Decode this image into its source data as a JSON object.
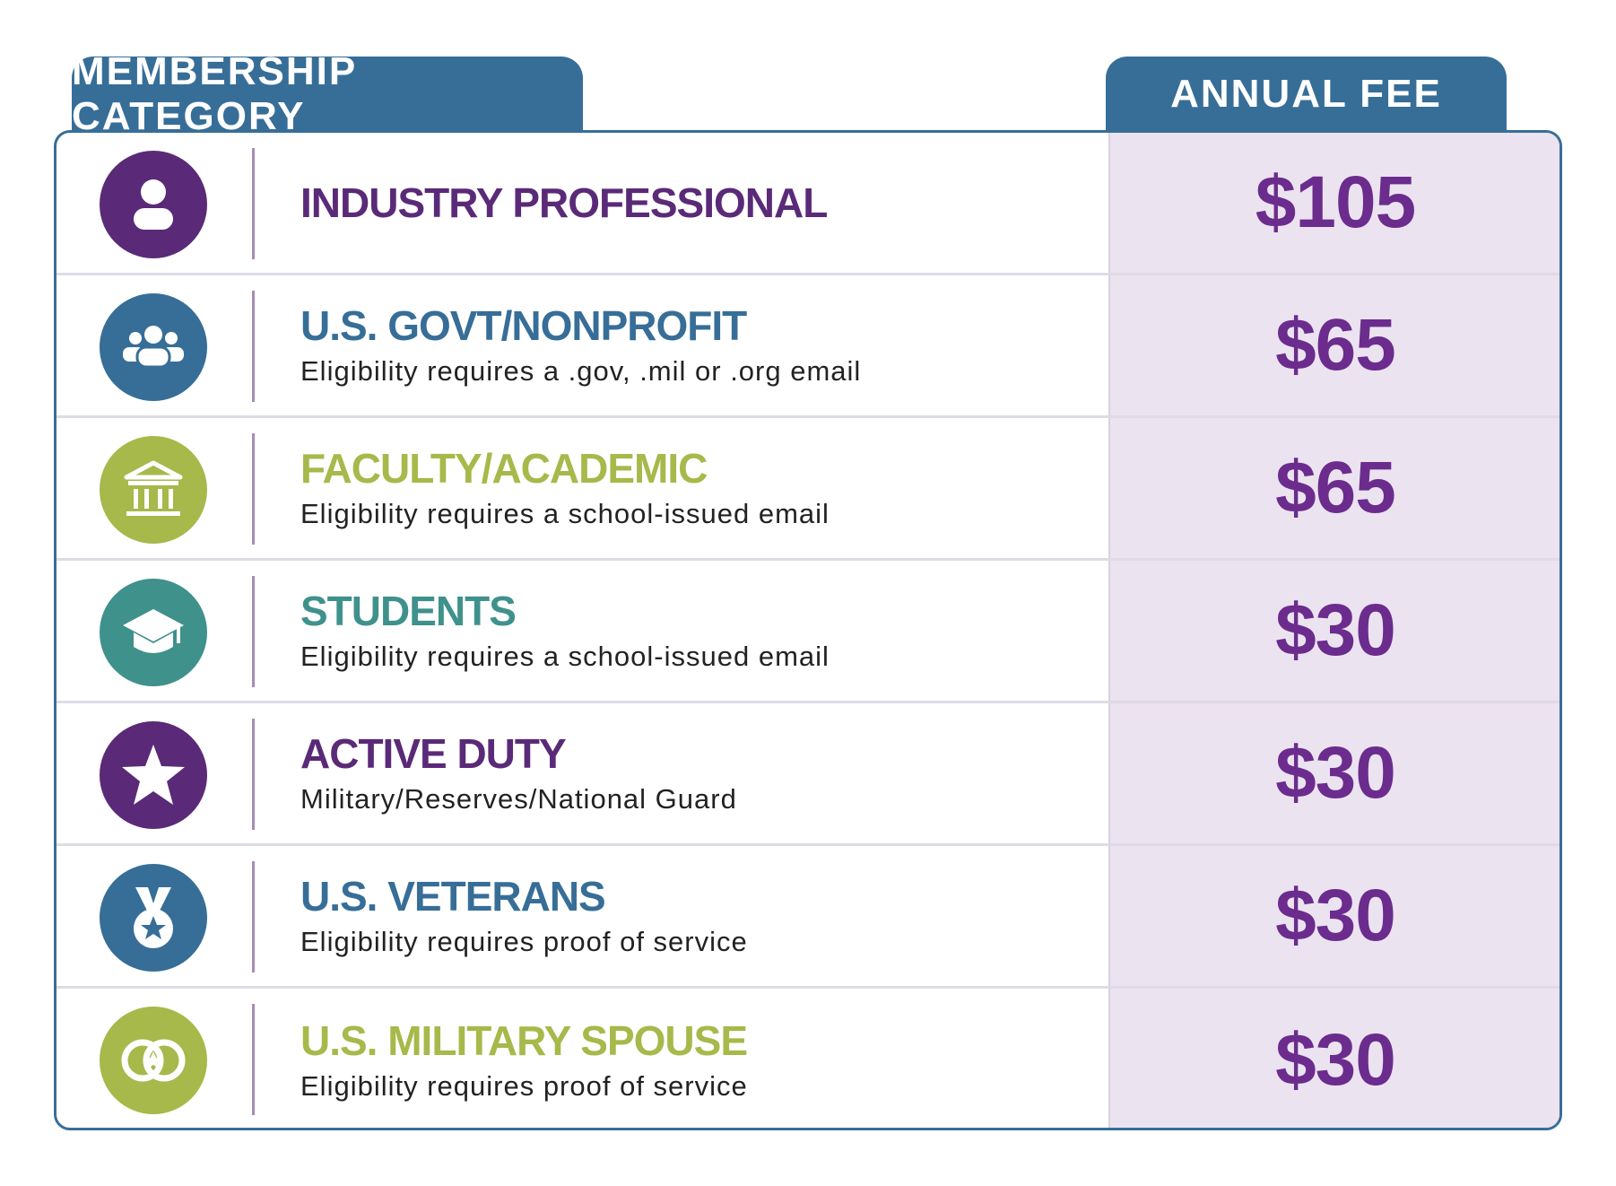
{
  "header": {
    "category_label": "MEMBERSHIP CATEGORY",
    "fee_label": "ANNUAL FEE",
    "color": "#376e98"
  },
  "colors": {
    "purple": "#5a2a78",
    "blue": "#376e98",
    "green": "#a6b94a",
    "teal": "#3f918c",
    "fee_text": "#6b2c8e",
    "fee_background": "#ebe3ef"
  },
  "rows": [
    {
      "icon": "person-icon",
      "title": "INDUSTRY PROFESSIONAL",
      "subtitle": "",
      "fee": "$105",
      "color": "#5a2a78"
    },
    {
      "icon": "group-icon",
      "title": "U.S. GOVT/NONPROFIT",
      "subtitle": "Eligibility requires a .gov, .mil or .org email",
      "fee": "$65",
      "color": "#376e98"
    },
    {
      "icon": "building-icon",
      "title": "FACULTY/ACADEMIC",
      "subtitle": "Eligibility requires a school-issued email",
      "fee": "$65",
      "color": "#a6b94a"
    },
    {
      "icon": "graduation-cap-icon",
      "title": "STUDENTS",
      "subtitle": "Eligibility requires a school-issued email",
      "fee": "$30",
      "color": "#3f918c"
    },
    {
      "icon": "star-icon",
      "title": "ACTIVE DUTY",
      "subtitle": "Military/Reserves/National Guard",
      "fee": "$30",
      "color": "#5a2a78"
    },
    {
      "icon": "medal-icon",
      "title": "U.S. VETERANS",
      "subtitle": "Eligibility requires proof of service",
      "fee": "$30",
      "color": "#376e98"
    },
    {
      "icon": "rings-icon",
      "title": "U.S. MILITARY SPOUSE",
      "subtitle": "Eligibility requires proof of service",
      "fee": "$30",
      "color": "#a6b94a"
    }
  ]
}
